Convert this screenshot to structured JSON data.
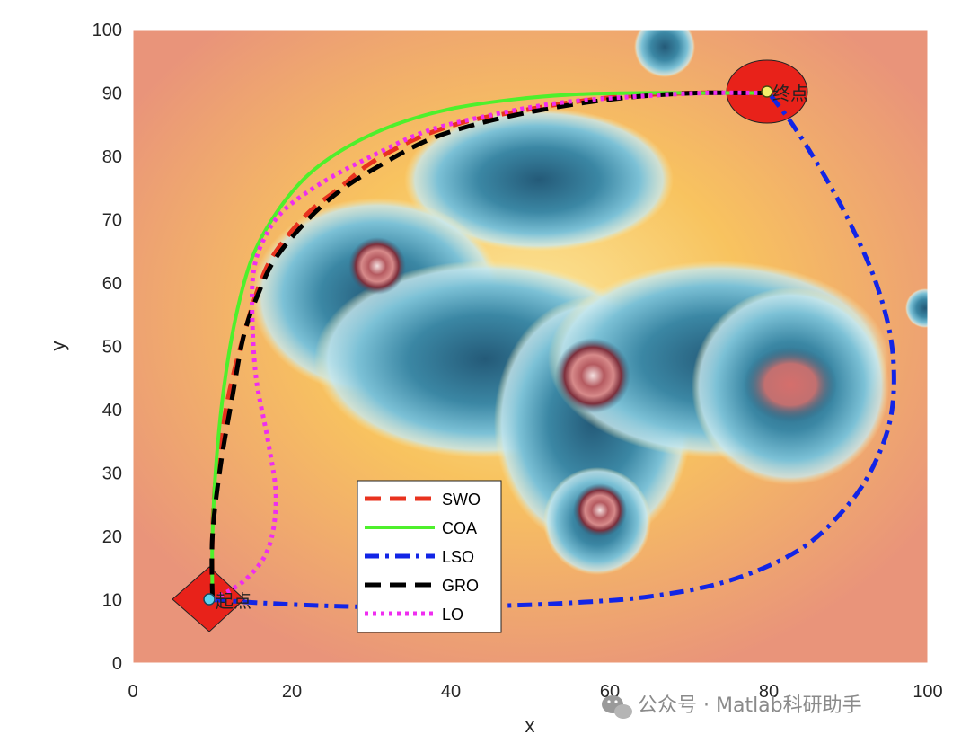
{
  "chart_data": {
    "type": "line",
    "xlabel": "x",
    "ylabel": "y",
    "xlim": [
      0,
      100
    ],
    "ylim": [
      0,
      100
    ],
    "xticks": [
      0,
      20,
      40,
      60,
      80,
      100
    ],
    "yticks": [
      0,
      10,
      20,
      30,
      40,
      50,
      60,
      70,
      80,
      90,
      100
    ],
    "legend_position": "lower-center",
    "start": {
      "x": 10,
      "y": 10,
      "label": "起点"
    },
    "goal": {
      "x": 80,
      "y": 90,
      "label": "终点"
    },
    "series": [
      {
        "name": "SWO",
        "color": "#e8321e",
        "style": "dashed",
        "x": [
          10,
          10,
          10.5,
          12,
          14,
          16,
          18,
          22,
          26,
          30,
          36,
          42,
          48,
          55,
          62,
          70,
          76,
          80
        ],
        "y": [
          10,
          20,
          30,
          42,
          52,
          60,
          65,
          71,
          75,
          79,
          83,
          85.5,
          87,
          88.5,
          89.5,
          90,
          90,
          90
        ]
      },
      {
        "name": "COA",
        "color": "#4ef02c",
        "style": "solid",
        "x": [
          10,
          10,
          10.5,
          11.5,
          13,
          15,
          18,
          22,
          27,
          33,
          40,
          48,
          56,
          64,
          72,
          80
        ],
        "y": [
          10,
          20,
          32,
          44,
          55,
          64,
          71,
          77,
          81.5,
          85,
          87.5,
          89,
          89.8,
          90,
          90,
          90
        ]
      },
      {
        "name": "LSO",
        "color": "#1225e6",
        "style": "dashdot",
        "x": [
          10,
          16,
          25,
          35,
          45,
          55,
          65,
          75,
          84,
          90,
          93.5,
          95.5,
          95.5,
          93.5,
          90,
          86.5,
          83,
          80
        ],
        "y": [
          10,
          9.5,
          9,
          8.8,
          9,
          9.5,
          10.5,
          13,
          18,
          25,
          32,
          40,
          50,
          60,
          70,
          78,
          85,
          90
        ]
      },
      {
        "name": "GRO",
        "color": "#000000",
        "style": "dashed",
        "x": [
          10,
          10,
          11,
          12.5,
          14,
          16,
          18,
          22,
          26,
          31,
          37,
          43,
          50,
          57,
          64,
          71,
          77,
          80
        ],
        "y": [
          10,
          20,
          31,
          42,
          52,
          59,
          64,
          70,
          74.5,
          78.5,
          82.5,
          85,
          87,
          88.5,
          89.5,
          90,
          90,
          90
        ]
      },
      {
        "name": "LO",
        "color": "#ef2df0",
        "style": "dotted",
        "x": [
          10,
          14,
          17,
          18,
          17,
          15.5,
          15,
          15.2,
          16.5,
          19,
          24,
          30,
          37,
          45,
          54,
          64,
          72,
          80
        ],
        "y": [
          10,
          13,
          18,
          26,
          35,
          45,
          55,
          62,
          67,
          71.5,
          76,
          80,
          84,
          86.5,
          88.5,
          89.5,
          90,
          90
        ]
      }
    ]
  },
  "watermark": {
    "text": "公众号 · Matlab科研助手"
  }
}
